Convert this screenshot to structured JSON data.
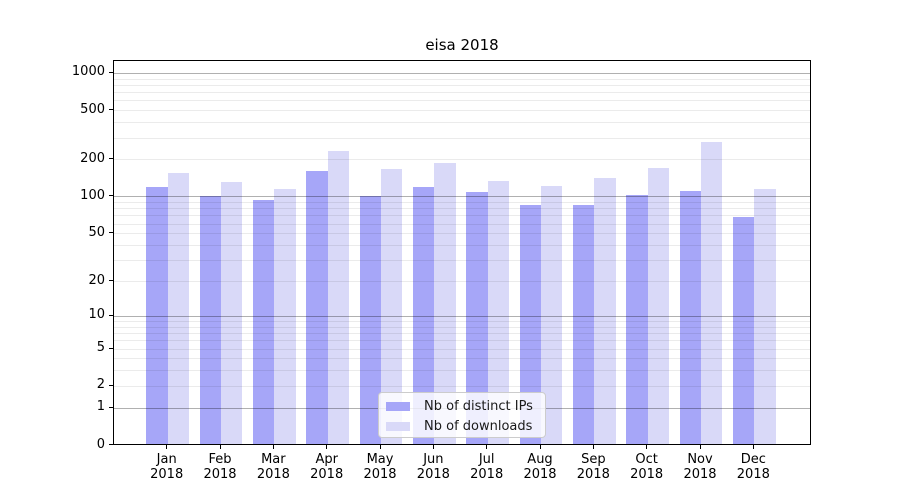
{
  "figure": {
    "title": "eisa 2018"
  },
  "chart_data": {
    "type": "bar",
    "title": "eisa 2018",
    "categories": [
      "Jan 2018",
      "Feb 2018",
      "Mar 2018",
      "Apr 2018",
      "May 2018",
      "Jun 2018",
      "Jul 2018",
      "Aug 2018",
      "Sep 2018",
      "Oct 2018",
      "Nov 2018",
      "Dec 2018"
    ],
    "series": [
      {
        "name": "Nb of distinct IPs",
        "color": "#a6a6f8",
        "values": [
          119,
          100,
          93,
          160,
          100,
          118,
          107,
          85,
          84,
          101,
          109,
          67
        ]
      },
      {
        "name": "Nb of downloads",
        "color": "#d9d9f8",
        "values": [
          155,
          131,
          113,
          232,
          166,
          185,
          133,
          121,
          141,
          170,
          273,
          115
        ]
      }
    ],
    "xlabel": "",
    "ylabel": "",
    "yscale": "log10(value+1)",
    "ylim": [
      0,
      1260
    ],
    "y_ticks": [
      0,
      1,
      2,
      5,
      10,
      20,
      50,
      100,
      200,
      500,
      1000
    ],
    "grid": {
      "enabled": true,
      "drawn_above_bars": true,
      "major_gridline_values": [
        1,
        10,
        100,
        1000
      ],
      "minor_gridline_values": [
        2,
        3,
        4,
        5,
        6,
        7,
        8,
        9,
        20,
        30,
        40,
        50,
        60,
        70,
        80,
        90,
        200,
        300,
        400,
        500,
        600,
        700,
        800,
        900
      ]
    },
    "legend": {
      "position": "lower center",
      "entries": [
        "Nb of distinct IPs",
        "Nb of downloads"
      ]
    }
  }
}
